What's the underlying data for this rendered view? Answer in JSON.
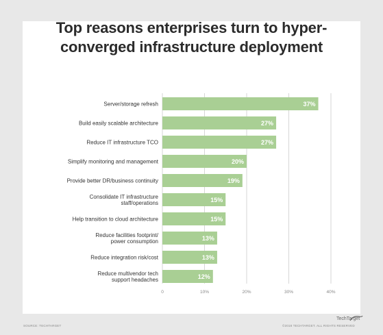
{
  "title_lines": [
    "Top reasons enterprises turn to hyper-",
    "converged infrastructure deployment"
  ],
  "footer": {
    "source": "SOURCE: TECHTARGET",
    "copyright": "©2018 TECHTARGET. ALL RIGHTS RESERVED",
    "brand": "TechTarget"
  },
  "chart_data": {
    "type": "bar",
    "orientation": "horizontal",
    "title": "Top reasons enterprises turn to hyper-converged infrastructure deployment",
    "categories": [
      [
        "Server/storage refresh"
      ],
      [
        "Build easily scalable architecture"
      ],
      [
        "Reduce IT infrastructure TCO"
      ],
      [
        "Simplify monitoring and management"
      ],
      [
        "Provide better DR/business continuity"
      ],
      [
        "Consolidate IT infrastructure",
        "staff/operations"
      ],
      [
        "Help transition to cloud architecture"
      ],
      [
        "Reduce facilities footprint/",
        "power consumption"
      ],
      [
        "Reduce integration risk/cost"
      ],
      [
        "Reduce multivendor tech",
        "support headaches"
      ]
    ],
    "values": [
      37,
      27,
      27,
      20,
      19,
      15,
      15,
      13,
      13,
      12
    ],
    "value_labels": [
      "37%",
      "27%",
      "27%",
      "20%",
      "19%",
      "15%",
      "15%",
      "13%",
      "13%",
      "12%"
    ],
    "xlim": [
      0,
      40
    ],
    "xticks": [
      "0",
      "10%",
      "20%",
      "30%",
      "40%"
    ],
    "grid": true,
    "bar_color": "#a9cf94",
    "label_color": "#ffffff",
    "grid_color": "#cccccc"
  }
}
